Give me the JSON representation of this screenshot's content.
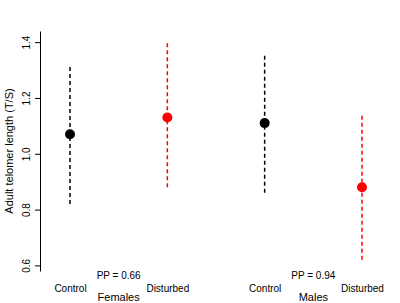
{
  "chart_data": {
    "type": "dot_errorbar",
    "y_label": "Adult telomer length (T/S)",
    "categories": [
      "Control",
      "Disturbed",
      "Control",
      "Disturbed"
    ],
    "groups": [
      {
        "label": "Females",
        "annotation": "PP = 0.66"
      },
      {
        "label": "Males",
        "annotation": "PP = 0.94"
      }
    ],
    "values": [
      1.07,
      1.13,
      1.11,
      0.88
    ],
    "lower": [
      0.82,
      0.88,
      0.86,
      0.62
    ],
    "upper": [
      1.32,
      1.4,
      1.36,
      1.14
    ],
    "colors": [
      "#000000",
      "#ff0000",
      "#000000",
      "#ff0000"
    ],
    "line_style": "dashed",
    "ylim": [
      0.58,
      1.44
    ],
    "yticks": [
      0.6,
      0.8,
      {
        "value": 1,
        "label": "1.0"
      },
      1.2,
      1.4
    ]
  }
}
